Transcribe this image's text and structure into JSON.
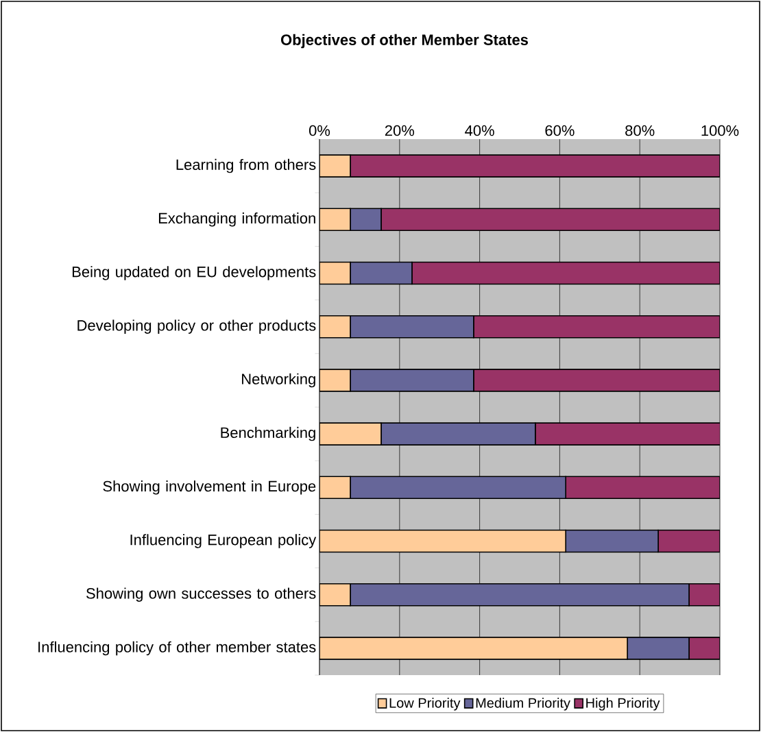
{
  "chart_data": {
    "type": "bar",
    "orientation": "horizontal",
    "stacked": true,
    "title": "Objectives of other Member States",
    "categories": [
      "Learning from others",
      "Exchanging information",
      "Being updated on EU developments",
      "Developing policy or other products",
      "Networking",
      "Benchmarking",
      "Showing involvement in Europe",
      "Influencing European policy",
      "Showing own successes to others",
      "Influencing policy of other member states"
    ],
    "series": [
      {
        "name": "Low Priority",
        "color": "#ffcc99",
        "values": [
          7.7,
          7.7,
          7.7,
          7.7,
          7.7,
          15.4,
          7.7,
          61.5,
          7.7,
          76.9
        ]
      },
      {
        "name": "Medium Priority",
        "color": "#666699",
        "values": [
          0,
          7.7,
          15.4,
          30.8,
          30.8,
          38.5,
          53.8,
          23.1,
          84.6,
          15.4
        ]
      },
      {
        "name": "High Priority",
        "color": "#993366",
        "values": [
          92.3,
          84.6,
          76.9,
          61.5,
          61.5,
          46.2,
          38.5,
          15.4,
          7.7,
          7.7
        ]
      }
    ],
    "xlim": [
      0,
      100
    ],
    "xticks": [
      {
        "value": 0,
        "label": "0%"
      },
      {
        "value": 20,
        "label": "20%"
      },
      {
        "value": 40,
        "label": "40%"
      },
      {
        "value": 60,
        "label": "60%"
      },
      {
        "value": 80,
        "label": "80%"
      },
      {
        "value": 100,
        "label": "100%"
      }
    ],
    "grid": "x",
    "legend": "bottom"
  }
}
